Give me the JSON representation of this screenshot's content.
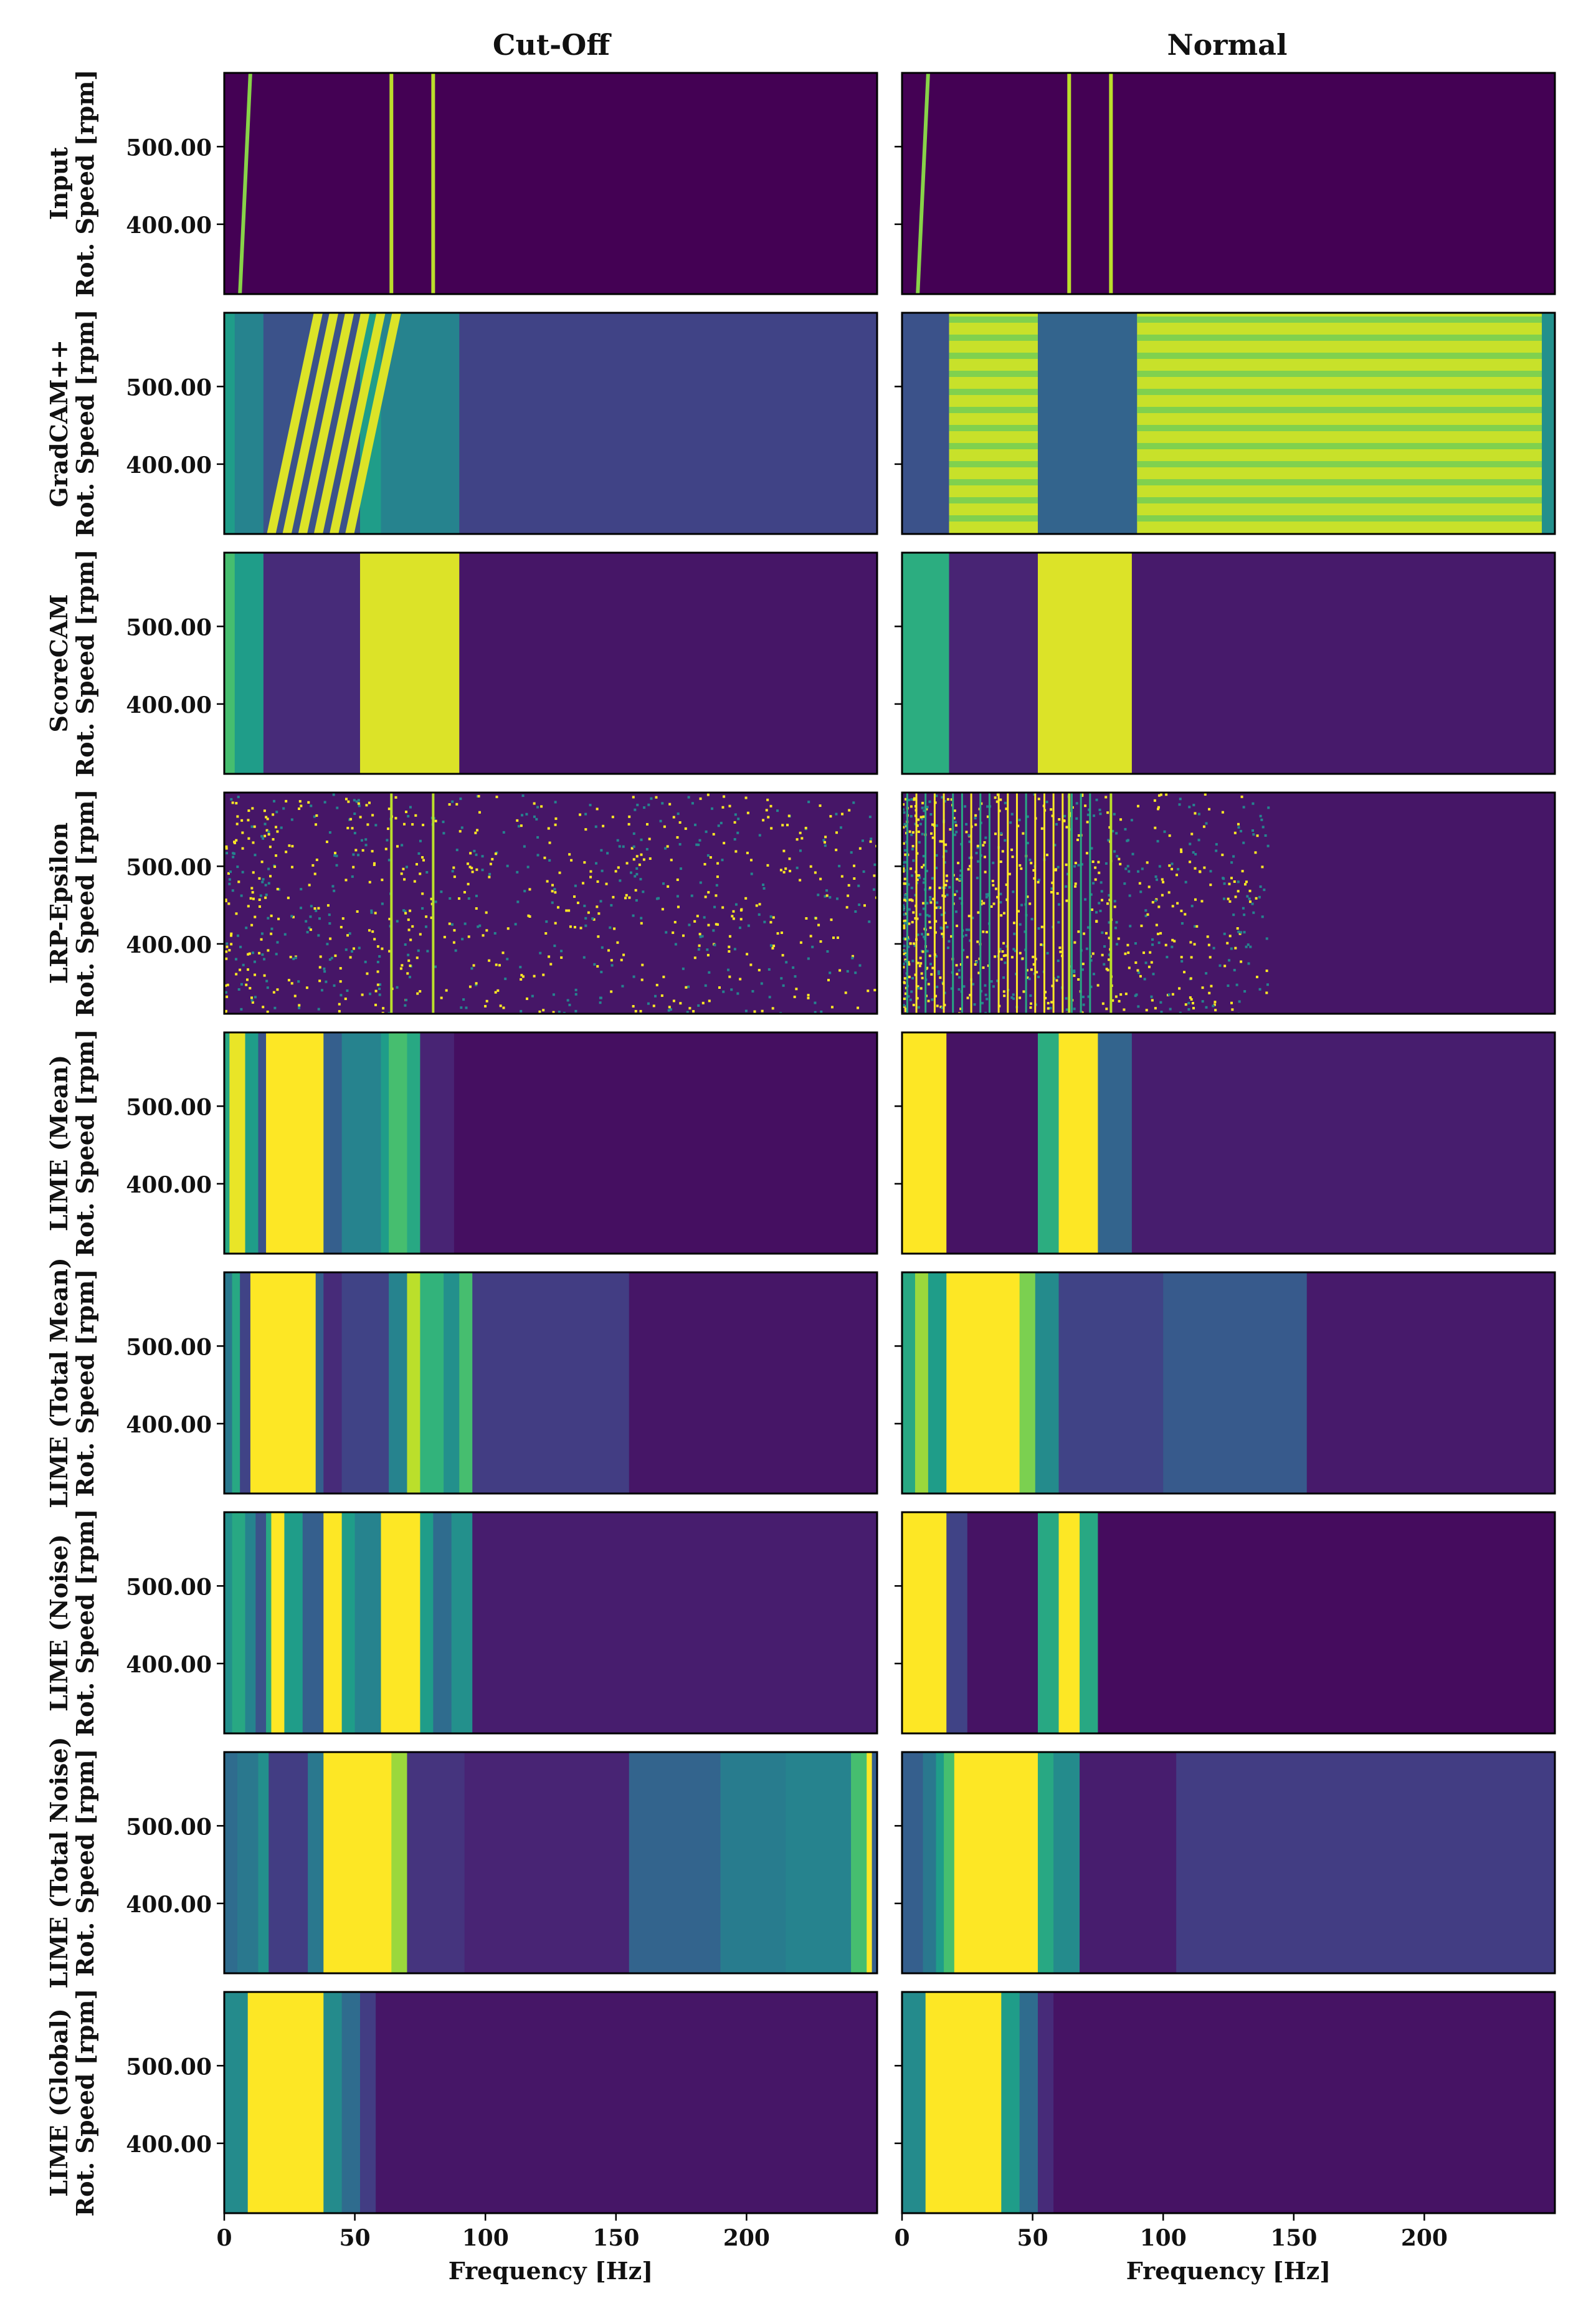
{
  "chart_data": {
    "type": "heatmap",
    "colormap": "viridis",
    "columns": [
      "Cut-Off",
      "Normal"
    ],
    "rows": [
      "Input",
      "GradCAM++",
      "ScoreCAM",
      "LRP-Epsilon",
      "LIME (Mean)",
      "LIME (Total Mean)",
      "LIME (Noise)",
      "LIME (Total Noise)",
      "LIME (Global)"
    ],
    "ylabel": "Rot. Speed [rpm]",
    "xlabel": "Frequency [Hz]",
    "xlim": [
      0,
      250
    ],
    "ylim": [
      310,
      595
    ],
    "xticks": [
      0,
      50,
      100,
      150,
      200
    ],
    "xtick_labels": [
      "0",
      "50",
      "100",
      "150",
      "200"
    ],
    "yticks": [
      400,
      500
    ],
    "ytick_labels": [
      "400.00",
      "500.00"
    ],
    "bands": {
      "Cut-Off": {
        "Input": [
          [
            0,
            250,
            0.0
          ]
        ],
        "GradCAM++": [
          [
            0,
            4,
            0.55
          ],
          [
            4,
            15,
            0.45
          ],
          [
            15,
            52,
            0.25
          ],
          [
            52,
            60,
            0.55
          ],
          [
            60,
            90,
            0.45
          ],
          [
            90,
            250,
            0.2
          ]
        ],
        "ScoreCAM": [
          [
            0,
            4,
            0.7
          ],
          [
            4,
            15,
            0.55
          ],
          [
            15,
            52,
            0.12
          ],
          [
            52,
            90,
            0.95
          ],
          [
            90,
            250,
            0.06
          ]
        ],
        "LRP-Epsilon": [
          [
            0,
            250,
            0.06
          ]
        ],
        "LIME (Mean)": [
          [
            0,
            2,
            0.6
          ],
          [
            2,
            8,
            0.97
          ],
          [
            8,
            13,
            0.55
          ],
          [
            13,
            16,
            0.25
          ],
          [
            16,
            38,
            1.0
          ],
          [
            38,
            45,
            0.3
          ],
          [
            45,
            60,
            0.45
          ],
          [
            60,
            63,
            0.55
          ],
          [
            63,
            70,
            0.7
          ],
          [
            70,
            75,
            0.6
          ],
          [
            75,
            88,
            0.1
          ],
          [
            88,
            250,
            0.04
          ]
        ],
        "LIME (Total Mean)": [
          [
            0,
            3,
            0.4
          ],
          [
            3,
            6,
            0.6
          ],
          [
            6,
            10,
            0.2
          ],
          [
            10,
            35,
            1.0
          ],
          [
            35,
            38,
            0.3
          ],
          [
            38,
            45,
            0.12
          ],
          [
            45,
            63,
            0.2
          ],
          [
            63,
            70,
            0.45
          ],
          [
            70,
            75,
            0.9
          ],
          [
            75,
            84,
            0.65
          ],
          [
            84,
            90,
            0.5
          ],
          [
            90,
            95,
            0.7
          ],
          [
            95,
            155,
            0.18
          ],
          [
            155,
            250,
            0.06
          ]
        ],
        "LIME (Noise)": [
          [
            0,
            3,
            0.5
          ],
          [
            3,
            8,
            0.6
          ],
          [
            8,
            12,
            0.45
          ],
          [
            12,
            16,
            0.25
          ],
          [
            16,
            18,
            0.6
          ],
          [
            18,
            23,
            1.0
          ],
          [
            23,
            30,
            0.55
          ],
          [
            30,
            38,
            0.3
          ],
          [
            38,
            45,
            1.0
          ],
          [
            45,
            50,
            0.55
          ],
          [
            50,
            60,
            0.45
          ],
          [
            60,
            75,
            1.0
          ],
          [
            75,
            80,
            0.55
          ],
          [
            80,
            87,
            0.35
          ],
          [
            87,
            95,
            0.5
          ],
          [
            95,
            250,
            0.08
          ]
        ],
        "LIME (Total Noise)": [
          [
            0,
            5,
            0.35
          ],
          [
            5,
            13,
            0.4
          ],
          [
            13,
            17,
            0.5
          ],
          [
            17,
            32,
            0.18
          ],
          [
            32,
            38,
            0.4
          ],
          [
            38,
            64,
            1.0
          ],
          [
            64,
            70,
            0.85
          ],
          [
            70,
            92,
            0.15
          ],
          [
            92,
            155,
            0.1
          ],
          [
            155,
            190,
            0.32
          ],
          [
            190,
            215,
            0.42
          ],
          [
            215,
            240,
            0.45
          ],
          [
            240,
            246,
            0.7
          ],
          [
            246,
            248,
            1.0
          ],
          [
            248,
            250,
            0.3
          ]
        ],
        "LIME (Global)": [
          [
            0,
            9,
            0.48
          ],
          [
            9,
            38,
            1.0
          ],
          [
            38,
            45,
            0.48
          ],
          [
            45,
            52,
            0.35
          ],
          [
            52,
            58,
            0.18
          ],
          [
            58,
            250,
            0.06
          ]
        ]
      },
      "Normal": {
        "Input": [
          [
            0,
            250,
            0.0
          ]
        ],
        "GradCAM++": [
          [
            0,
            18,
            0.25
          ],
          [
            18,
            52,
            0.92
          ],
          [
            52,
            90,
            0.32
          ],
          [
            90,
            245,
            0.92
          ],
          [
            245,
            250,
            0.5
          ]
        ],
        "ScoreCAM": [
          [
            0,
            18,
            0.62
          ],
          [
            18,
            52,
            0.1
          ],
          [
            52,
            88,
            0.95
          ],
          [
            88,
            250,
            0.07
          ]
        ],
        "LRP-Epsilon": [
          [
            0,
            250,
            0.06
          ]
        ],
        "LIME (Mean)": [
          [
            0,
            17,
            1.0
          ],
          [
            17,
            52,
            0.05
          ],
          [
            52,
            60,
            0.62
          ],
          [
            60,
            75,
            1.0
          ],
          [
            75,
            88,
            0.32
          ],
          [
            88,
            250,
            0.08
          ]
        ],
        "LIME (Total Mean)": [
          [
            0,
            5,
            0.6
          ],
          [
            5,
            10,
            0.85
          ],
          [
            10,
            17,
            0.55
          ],
          [
            17,
            45,
            1.0
          ],
          [
            45,
            51,
            0.8
          ],
          [
            51,
            60,
            0.48
          ],
          [
            60,
            100,
            0.2
          ],
          [
            100,
            155,
            0.28
          ],
          [
            155,
            250,
            0.07
          ]
        ],
        "LIME (Noise)": [
          [
            0,
            17,
            1.0
          ],
          [
            17,
            25,
            0.2
          ],
          [
            25,
            52,
            0.05
          ],
          [
            52,
            60,
            0.6
          ],
          [
            60,
            68,
            1.0
          ],
          [
            68,
            75,
            0.6
          ],
          [
            75,
            250,
            0.03
          ]
        ],
        "LIME (Total Noise)": [
          [
            0,
            8,
            0.3
          ],
          [
            8,
            13,
            0.4
          ],
          [
            13,
            16,
            0.55
          ],
          [
            16,
            20,
            0.7
          ],
          [
            20,
            52,
            1.0
          ],
          [
            52,
            58,
            0.6
          ],
          [
            58,
            68,
            0.48
          ],
          [
            68,
            105,
            0.08
          ],
          [
            105,
            250,
            0.18
          ]
        ],
        "LIME (Global)": [
          [
            0,
            9,
            0.48
          ],
          [
            9,
            38,
            1.0
          ],
          [
            38,
            45,
            0.55
          ],
          [
            45,
            52,
            0.35
          ],
          [
            52,
            58,
            0.12
          ],
          [
            58,
            250,
            0.05
          ]
        ]
      }
    },
    "lines": {
      "Input": {
        "Cut-Off": [
          {
            "f0": 6,
            "f1": 10,
            "v": 0.82
          },
          {
            "f0": 64,
            "f1": 64,
            "v": 0.9
          },
          {
            "f0": 80,
            "f1": 80,
            "v": 0.9
          }
        ],
        "Normal": [
          {
            "f0": 6,
            "f1": 10,
            "v": 0.82
          },
          {
            "f0": 64,
            "f1": 64,
            "v": 0.9
          },
          {
            "f0": 80,
            "f1": 80,
            "v": 0.9
          }
        ]
      }
    }
  }
}
